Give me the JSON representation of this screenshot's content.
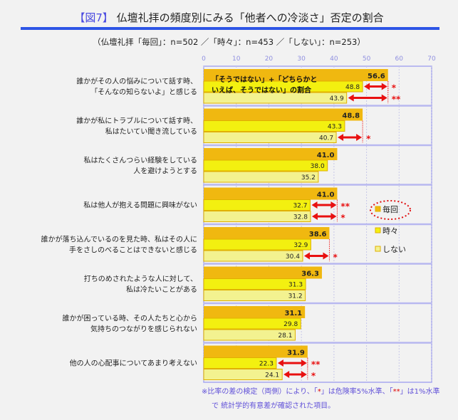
{
  "title": {
    "fig": "【図7】",
    "text": "仏壇礼拝の頻度別にみる「他者への冷淡さ」否定の割合"
  },
  "subtitle": "（仏壇礼拝「毎回」：n=502 ／「時々」：n=453 ／「しない」：n=253）",
  "chart_data": {
    "type": "bar",
    "orientation": "horizontal",
    "xlim": [
      0,
      70
    ],
    "xticks": [
      0,
      10,
      20,
      30,
      40,
      50,
      60,
      70
    ],
    "grid": true,
    "categories": [
      [
        "誰かがその人の悩みについて話す時、",
        "「そんなの知らないよ」と感じる"
      ],
      [
        "誰かが私にトラブルについて話す時、",
        "私はたいてい聞き流している"
      ],
      [
        "私はたくさんつらい経験をしている",
        "人を避けようとする"
      ],
      [
        "私は他人が抱える問題に興味がない"
      ],
      [
        "誰かが落ち込んでいるのを見た時、私はその人に",
        "手をさしのべることはできないと感じる"
      ],
      [
        "打ちのめされたような人に対して、",
        "私は冷たいことがある"
      ],
      [
        "誰かが困っている時、その人たちと心から",
        "気持ちのつながりを感じられない"
      ],
      [
        "他の人の心配事についてあまり考えない"
      ]
    ],
    "series": [
      {
        "name": "毎回",
        "color": "#f0b810",
        "values": [
          56.6,
          48.8,
          41.0,
          41.0,
          38.6,
          36.3,
          31.1,
          31.9
        ]
      },
      {
        "name": "時々",
        "color": "#f3f010",
        "values": [
          48.8,
          43.3,
          38.0,
          32.7,
          32.9,
          31.3,
          29.8,
          22.3
        ],
        "significance": [
          "*",
          "",
          "",
          "**",
          "",
          "",
          "",
          "**"
        ]
      },
      {
        "name": "しない",
        "color": "#f3f290",
        "values": [
          43.9,
          40.7,
          35.2,
          32.8,
          30.4,
          31.2,
          28.1,
          24.1
        ],
        "significance": [
          "**",
          "*",
          "",
          "*",
          "*",
          "",
          "",
          "*"
        ]
      }
    ],
    "annotation": [
      "「そうではない」+「どちらかと",
      "いえば、そうではない」の割合"
    ],
    "legend": {
      "position": "right",
      "highlighted": "毎回"
    }
  },
  "note": {
    "line1a": "※比率の差の検定（両側）により、「",
    "star1": "*",
    "line1b": "」は危険率5%水準、「",
    "star2": "**",
    "line1c": "」は1%水準",
    "line2": "で 統計学的有意差が確認された項目。"
  }
}
